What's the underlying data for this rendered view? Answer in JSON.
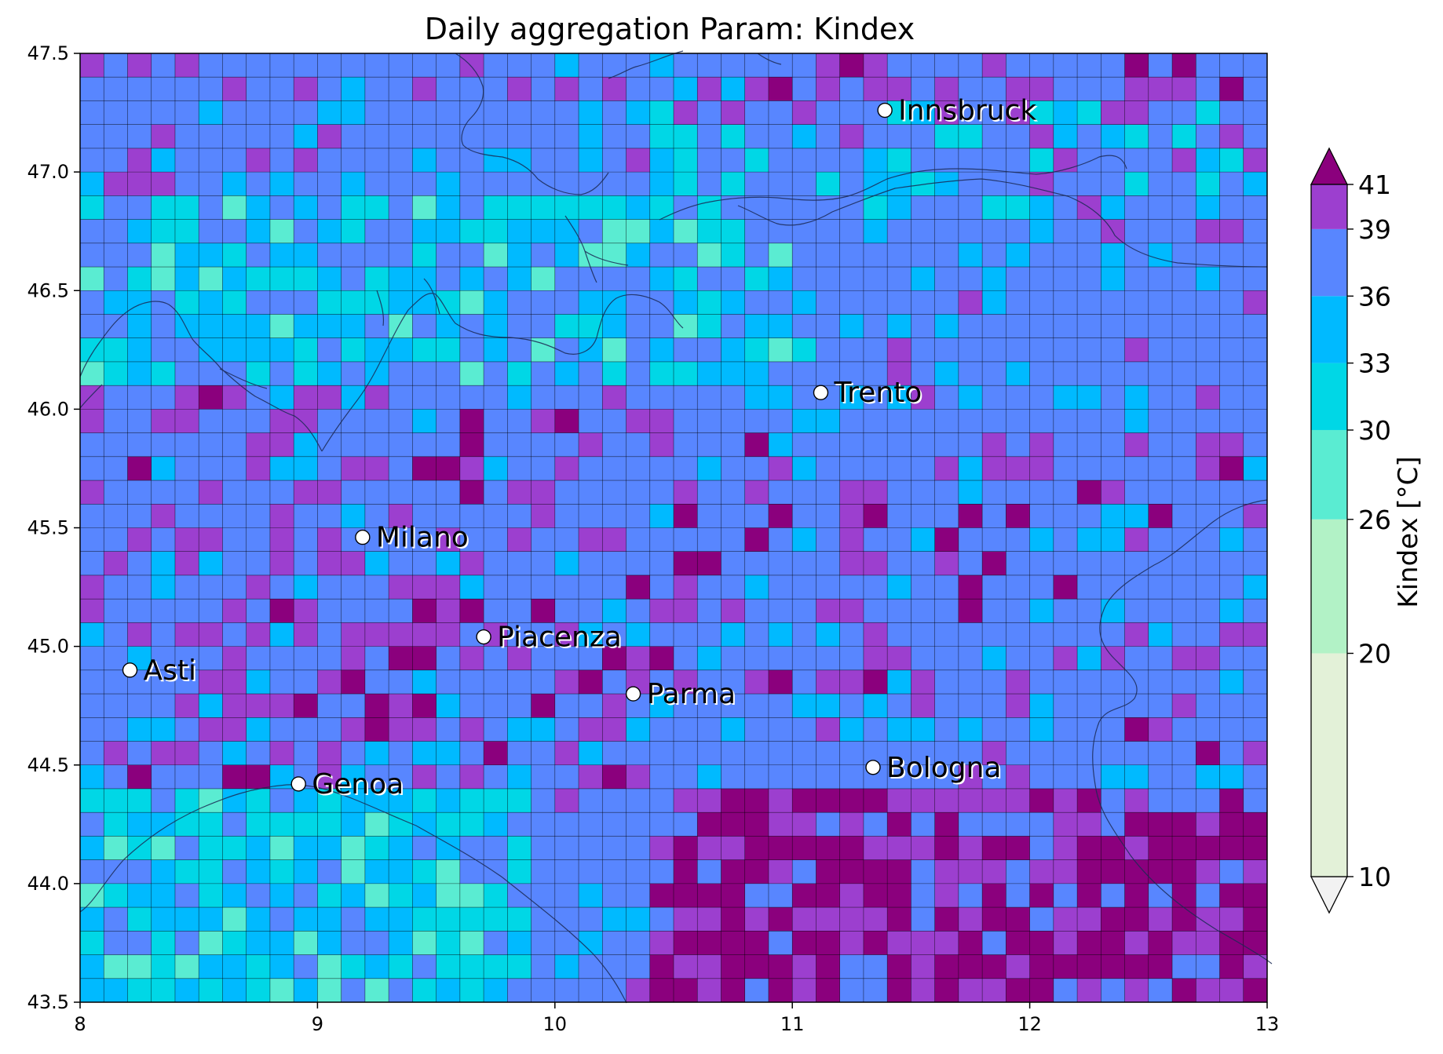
{
  "title": "Daily aggregation Param: Kindex",
  "map": {
    "lon_range": [
      8,
      13
    ],
    "lat_range": [
      43.5,
      47.5
    ],
    "x_ticks": [
      "8",
      "9",
      "10",
      "11",
      "12",
      "13"
    ],
    "y_ticks": [
      "43.5",
      "44.0",
      "44.5",
      "45.0",
      "45.5",
      "46.0",
      "46.5",
      "47.0",
      "47.5"
    ],
    "grid_cols": 50,
    "grid_rows": 40,
    "cities": [
      {
        "name": "Innsbruck",
        "lon": 11.39,
        "lat": 47.26
      },
      {
        "name": "Trento",
        "lon": 11.12,
        "lat": 46.07
      },
      {
        "name": "Milano",
        "lon": 9.19,
        "lat": 45.46
      },
      {
        "name": "Piacenza",
        "lon": 9.7,
        "lat": 45.04
      },
      {
        "name": "Asti",
        "lon": 8.21,
        "lat": 44.9
      },
      {
        "name": "Parma",
        "lon": 10.33,
        "lat": 44.8
      },
      {
        "name": "Bologna",
        "lon": 11.34,
        "lat": 44.49
      },
      {
        "name": "Genoa",
        "lon": 8.92,
        "lat": 44.42
      }
    ]
  },
  "colorbar": {
    "label": "Kindex  [°C]",
    "levels": [
      "10",
      "20",
      "26",
      "30",
      "33",
      "36",
      "39",
      "41"
    ],
    "colors": [
      "#e3f1d8",
      "#b2f2c6",
      "#5aecd2",
      "#00d7e6",
      "#00baff",
      "#5886ff",
      "#9c3fcf",
      "#8b007d"
    ],
    "under_color": "#f2f2f2",
    "over_color": "#8b007d"
  },
  "colors": {
    "cat0_violet": "#9c3fcf",
    "cat1_blue": "#5886ff",
    "cat2_lightblue": "#00baff",
    "cat3_cyan": "#00d7e6",
    "cat4_aquamarine": "#5aecd2",
    "cat5_magenta": "#8b007d",
    "coastline": "#1b2a55"
  }
}
